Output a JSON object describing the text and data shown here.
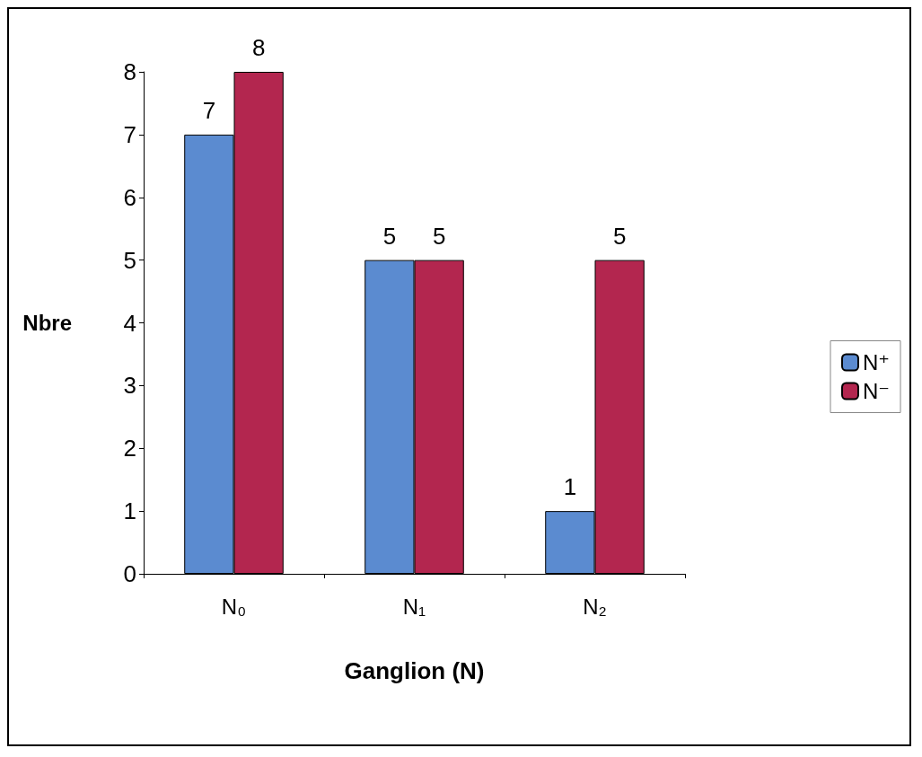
{
  "chart_data": {
    "type": "bar",
    "xlabel": "Ganglion (N)",
    "ylabel": "Nbre",
    "categories": [
      "N₀",
      "N₁",
      "N₂"
    ],
    "series": [
      {
        "name": "N⁺",
        "color": "#5b8bd0",
        "values": [
          7,
          5,
          1
        ]
      },
      {
        "name": "N⁻",
        "color": "#b3264f",
        "values": [
          8,
          5,
          5
        ]
      }
    ],
    "ylim": [
      0,
      8
    ],
    "yticks": [
      0,
      1,
      2,
      3,
      4,
      5,
      6,
      7,
      8
    ],
    "grid": false,
    "legend": "right",
    "data_labels": true
  }
}
